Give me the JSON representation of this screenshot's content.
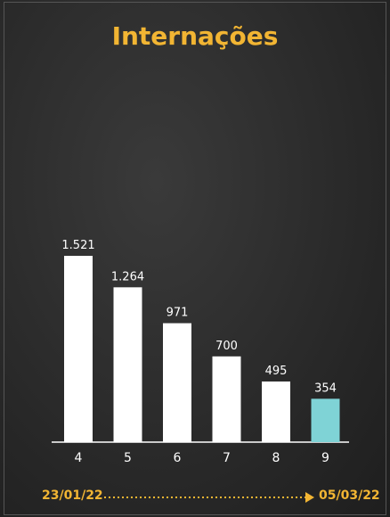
{
  "title": "Internações",
  "date_start": "23/01/22",
  "date_end": "05/03/22",
  "colors": {
    "bar": "#ffffff",
    "highlight": "#7fd3d6",
    "accent": "#f2b533",
    "text": "#ffffff"
  },
  "chart_data": {
    "type": "bar",
    "title": "Internações",
    "categories": [
      "4",
      "5",
      "6",
      "7",
      "8",
      "9"
    ],
    "values": [
      1521,
      1264,
      971,
      700,
      495,
      354
    ],
    "value_labels": [
      "1.521",
      "1.264",
      "971",
      "700",
      "495",
      "354"
    ],
    "highlight_index": 5,
    "ylim": [
      0,
      1521
    ],
    "grid": false
  }
}
